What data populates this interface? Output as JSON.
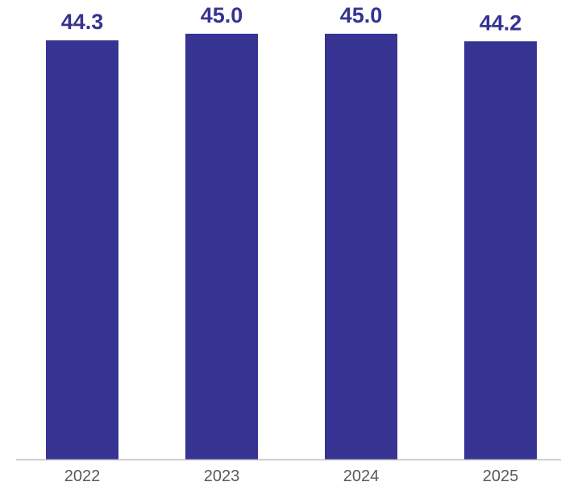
{
  "chart_data": {
    "type": "bar",
    "categories": [
      "2022",
      "2023",
      "2024",
      "2025"
    ],
    "values": [
      44.3,
      45.0,
      45.0,
      44.2
    ],
    "value_labels": [
      "44.3",
      "45.0",
      "45.0",
      "44.2"
    ],
    "title": "",
    "xlabel": "",
    "ylabel": "",
    "ylim": [
      0,
      45.5
    ],
    "grid": false,
    "legend": "none"
  },
  "colors": {
    "bar": "#373393",
    "value_label": "#373393",
    "tick_label": "#595959",
    "axis_line": "#bfbfbf"
  }
}
